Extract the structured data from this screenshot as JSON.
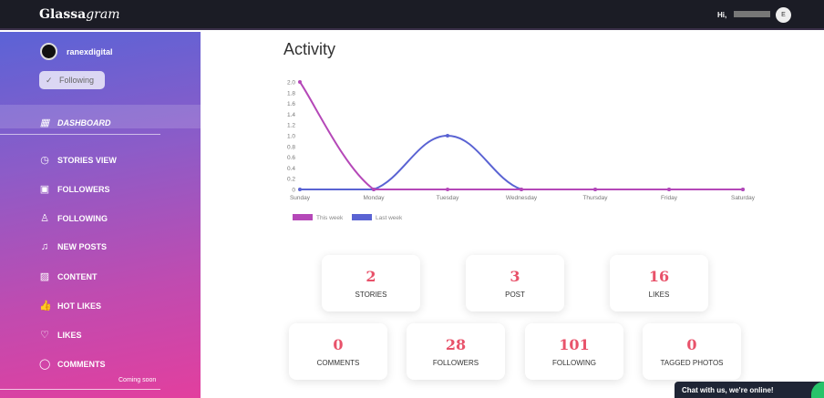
{
  "header": {
    "logo_main": "Glassa",
    "logo_italic": "gram",
    "greeting": "Hi,",
    "avatar_initial": "E"
  },
  "sidebar": {
    "username": "ranexdigital",
    "following_btn": "Following",
    "coming_soon": "Coming soon",
    "items": [
      {
        "label": "DASHBOARD",
        "icon": "dashboard-icon",
        "glyph": "▦"
      },
      {
        "label": "STORIES VIEW",
        "icon": "clock-icon",
        "glyph": "◷"
      },
      {
        "label": "FOLLOWERS",
        "icon": "followers-icon",
        "glyph": "▣"
      },
      {
        "label": "FOLLOWING",
        "icon": "user-icon",
        "glyph": "♙"
      },
      {
        "label": "NEW POSTS",
        "icon": "bell-icon",
        "glyph": "♫"
      },
      {
        "label": "CONTENT",
        "icon": "image-icon",
        "glyph": "▨"
      },
      {
        "label": "HOT LIKES",
        "icon": "thumbs-up-icon",
        "glyph": "👍"
      },
      {
        "label": "LIKES",
        "icon": "heart-icon",
        "glyph": "♡"
      },
      {
        "label": "COMMENTS",
        "icon": "comment-icon",
        "glyph": "◯"
      }
    ]
  },
  "main": {
    "title": "Activity"
  },
  "chart_data": {
    "type": "line",
    "categories": [
      "Sunday",
      "Monday",
      "Tuesday",
      "Wednesday",
      "Thursday",
      "Friday",
      "Saturday"
    ],
    "yticks": [
      "0",
      "0.2",
      "0.4",
      "0.6",
      "0.8",
      "1.0",
      "1.2",
      "1.4",
      "1.6",
      "1.8",
      "2.0"
    ],
    "ylim": [
      0,
      2
    ],
    "series": [
      {
        "name": "This week",
        "color": "#b548b8",
        "values": [
          2,
          0,
          0,
          0,
          0,
          0,
          0
        ]
      },
      {
        "name": "Last week",
        "color": "#5a63d3",
        "values": [
          0,
          0,
          1,
          0,
          0,
          0,
          0
        ]
      }
    ],
    "legend": "bottom-left"
  },
  "stats": [
    {
      "value": "2",
      "label": "STORIES"
    },
    {
      "value": "3",
      "label": "POST"
    },
    {
      "value": "16",
      "label": "LIKES"
    },
    {
      "value": "0",
      "label": "COMMENTS"
    },
    {
      "value": "28",
      "label": "FOLLOWERS"
    },
    {
      "value": "101",
      "label": "FOLLOWING"
    },
    {
      "value": "0",
      "label": "TAGGED PHOTOS"
    }
  ],
  "chat": {
    "label": "Chat with us, we're online!"
  }
}
